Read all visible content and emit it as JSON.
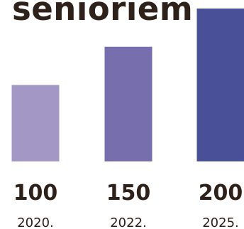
{
  "chart_data": {
    "type": "bar",
    "title": "senioriem",
    "categories": [
      "2020.",
      "2022.",
      "2025."
    ],
    "values": [
      100,
      150,
      200
    ],
    "value_labels": [
      "100",
      "150",
      "200"
    ],
    "colors": [
      "#a397c5",
      "#766ead",
      "#4a5097"
    ],
    "text_color": "#2d2119",
    "ylim": [
      0,
      200
    ]
  }
}
